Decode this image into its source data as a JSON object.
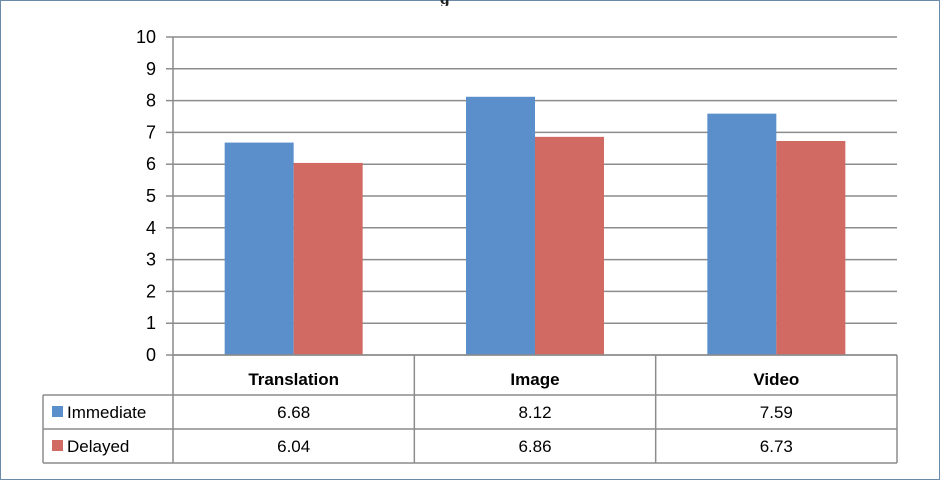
{
  "chart_data": {
    "type": "bar",
    "title": "",
    "categories": [
      "Translation",
      "Image",
      "Video"
    ],
    "series": [
      {
        "name": "Immediate",
        "values": [
          6.68,
          8.12,
          7.59
        ],
        "color": "#5b8fcc"
      },
      {
        "name": "Delayed",
        "values": [
          6.04,
          6.86,
          6.73
        ],
        "color": "#d26a64"
      }
    ],
    "ylim": [
      0,
      10
    ],
    "yticks": [
      0,
      1,
      2,
      3,
      4,
      5,
      6,
      7,
      8,
      9,
      10
    ],
    "grid": true,
    "legend": "data-table"
  }
}
